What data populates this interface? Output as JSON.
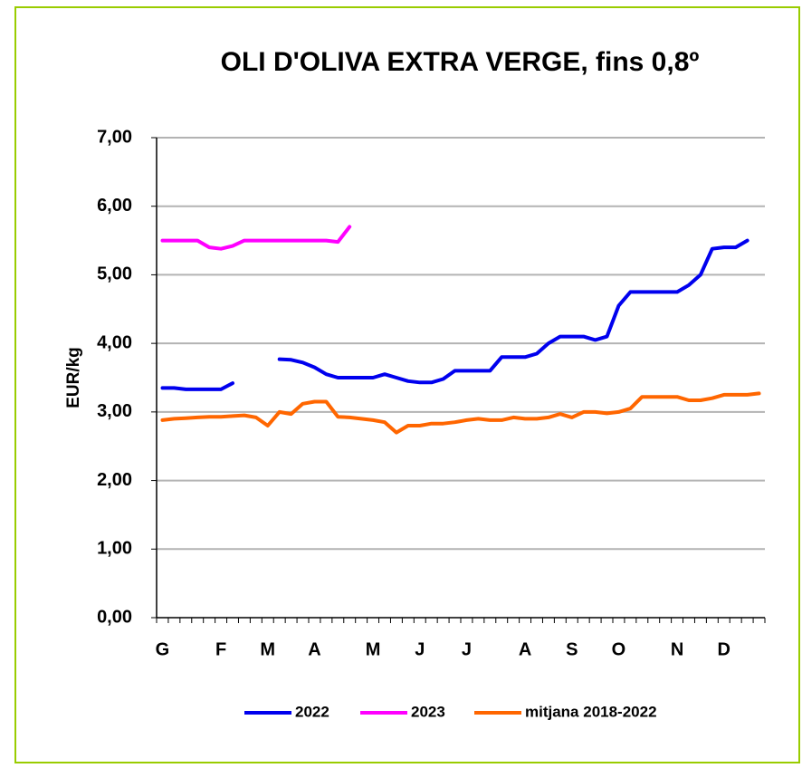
{
  "chart_data": {
    "type": "line",
    "title": "OLI D'OLIVA EXTRA VERGE, fins 0,8º",
    "y_label": "EUR/kg",
    "categories": [
      "G",
      null,
      null,
      null,
      null,
      "F",
      null,
      null,
      null,
      "M",
      null,
      null,
      null,
      "A",
      null,
      null,
      null,
      null,
      "M",
      null,
      null,
      null,
      "J",
      null,
      null,
      null,
      "J",
      null,
      null,
      null,
      null,
      "A",
      null,
      null,
      null,
      "S",
      null,
      null,
      null,
      "O",
      null,
      null,
      null,
      null,
      "N",
      null,
      null,
      null,
      "D",
      null,
      null,
      null
    ],
    "ylim": [
      0,
      7
    ],
    "yticks": [
      {
        "value": 0,
        "label": "0,00"
      },
      {
        "value": 1,
        "label": "1,00"
      },
      {
        "value": 2,
        "label": "2,00"
      },
      {
        "value": 3,
        "label": "3,00"
      },
      {
        "value": 4,
        "label": "4,00"
      },
      {
        "value": 5,
        "label": "5,00"
      },
      {
        "value": 6,
        "label": "6,00"
      },
      {
        "value": 7,
        "label": "7,00"
      }
    ],
    "grid": true,
    "legend": "bottom",
    "series": [
      {
        "name": "2022",
        "color": "#0000ee",
        "values": [
          3.35,
          3.35,
          3.33,
          3.33,
          3.33,
          3.33,
          3.42,
          null,
          null,
          null,
          3.77,
          3.76,
          3.72,
          3.65,
          3.55,
          3.5,
          3.5,
          3.5,
          3.5,
          3.55,
          3.5,
          3.45,
          3.43,
          3.43,
          3.48,
          3.6,
          3.6,
          3.6,
          3.6,
          3.8,
          3.8,
          3.8,
          3.85,
          4.0,
          4.1,
          4.1,
          4.1,
          4.05,
          4.1,
          4.55,
          4.75,
          4.75,
          4.75,
          4.75,
          4.75,
          4.85,
          5.0,
          5.38,
          5.4,
          5.4,
          5.5,
          null
        ]
      },
      {
        "name": "2023",
        "color": "#ff00ff",
        "values": [
          5.5,
          5.5,
          5.5,
          5.5,
          5.4,
          5.38,
          5.42,
          5.5,
          5.5,
          5.5,
          5.5,
          5.5,
          5.5,
          5.5,
          5.5,
          5.48,
          5.7,
          null,
          null,
          null,
          null,
          null,
          null,
          null,
          null,
          null,
          null,
          null,
          null,
          null,
          null,
          null,
          null,
          null,
          null,
          null,
          null,
          null,
          null,
          null,
          null,
          null,
          null,
          null,
          null,
          null,
          null,
          null,
          null,
          null,
          null,
          null
        ]
      },
      {
        "name": "mitjana 2018-2022",
        "color": "#ff6600",
        "values": [
          2.88,
          2.9,
          2.91,
          2.92,
          2.93,
          2.93,
          2.94,
          2.95,
          2.92,
          2.8,
          3.0,
          2.97,
          3.12,
          3.15,
          3.15,
          2.93,
          2.92,
          2.9,
          2.88,
          2.85,
          2.7,
          2.8,
          2.8,
          2.83,
          2.83,
          2.85,
          2.88,
          2.9,
          2.88,
          2.88,
          2.92,
          2.9,
          2.9,
          2.92,
          2.97,
          2.92,
          3.0,
          3.0,
          2.98,
          3.0,
          3.05,
          3.22,
          3.22,
          3.22,
          3.22,
          3.17,
          3.17,
          3.2,
          3.25,
          3.25,
          3.25,
          3.27
        ]
      }
    ]
  }
}
